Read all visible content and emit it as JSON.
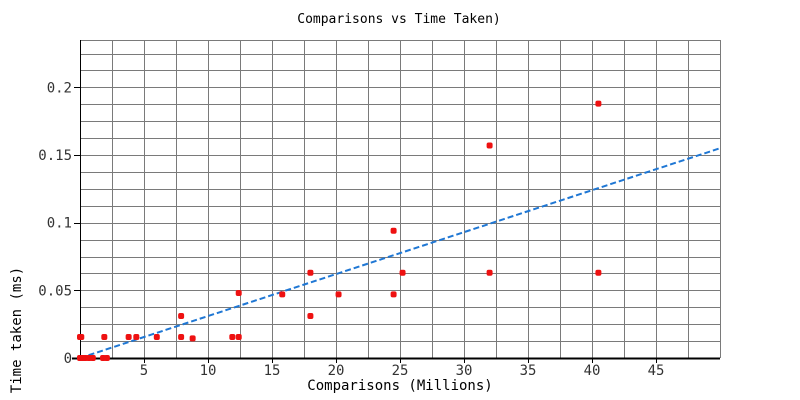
{
  "chart_data": {
    "type": "scatter",
    "title": "Comparisons vs Time Taken)",
    "xlabel": "Comparisons (Millions)",
    "ylabel": "Time taken (ms)",
    "xlim": [
      0,
      50
    ],
    "ylim": [
      0,
      0.235
    ],
    "x_ticks": [
      5,
      10,
      15,
      20,
      25,
      30,
      35,
      40,
      45
    ],
    "y_ticks": [
      0,
      0.05,
      0.1,
      0.15,
      0.2
    ],
    "y_tick_labels": [
      "0",
      "0.05",
      "0.1",
      "0.15",
      "0.2"
    ],
    "grid": true,
    "x_minor_step": 2.5,
    "y_minor_step": 0.0125,
    "point_color": "#ee1111",
    "trend_color": "#1f77d4",
    "points": [
      {
        "x": 0.0,
        "y": 0.0
      },
      {
        "x": 0.2,
        "y": 0.0
      },
      {
        "x": 0.4,
        "y": 0.0
      },
      {
        "x": 0.7,
        "y": 0.0
      },
      {
        "x": 1.0,
        "y": 0.0
      },
      {
        "x": 1.8,
        "y": 0.0
      },
      {
        "x": 2.1,
        "y": 0.0
      },
      {
        "x": 0.0,
        "y": 0.0155
      },
      {
        "x": 0.1,
        "y": 0.0155
      },
      {
        "x": 1.9,
        "y": 0.0155
      },
      {
        "x": 3.8,
        "y": 0.0155
      },
      {
        "x": 4.4,
        "y": 0.0155
      },
      {
        "x": 6.0,
        "y": 0.0155
      },
      {
        "x": 7.9,
        "y": 0.0155
      },
      {
        "x": 7.9,
        "y": 0.031
      },
      {
        "x": 8.8,
        "y": 0.0145
      },
      {
        "x": 11.9,
        "y": 0.0155
      },
      {
        "x": 12.4,
        "y": 0.0155
      },
      {
        "x": 12.4,
        "y": 0.048
      },
      {
        "x": 15.8,
        "y": 0.047
      },
      {
        "x": 18.0,
        "y": 0.031
      },
      {
        "x": 18.0,
        "y": 0.063
      },
      {
        "x": 20.2,
        "y": 0.047
      },
      {
        "x": 24.5,
        "y": 0.047
      },
      {
        "x": 24.5,
        "y": 0.094
      },
      {
        "x": 25.2,
        "y": 0.063
      },
      {
        "x": 32.0,
        "y": 0.063
      },
      {
        "x": 32.0,
        "y": 0.157
      },
      {
        "x": 40.5,
        "y": 0.063
      },
      {
        "x": 40.5,
        "y": 0.188
      }
    ],
    "trendline": {
      "from": [
        0,
        0.0
      ],
      "to": [
        50,
        0.155
      ]
    }
  }
}
